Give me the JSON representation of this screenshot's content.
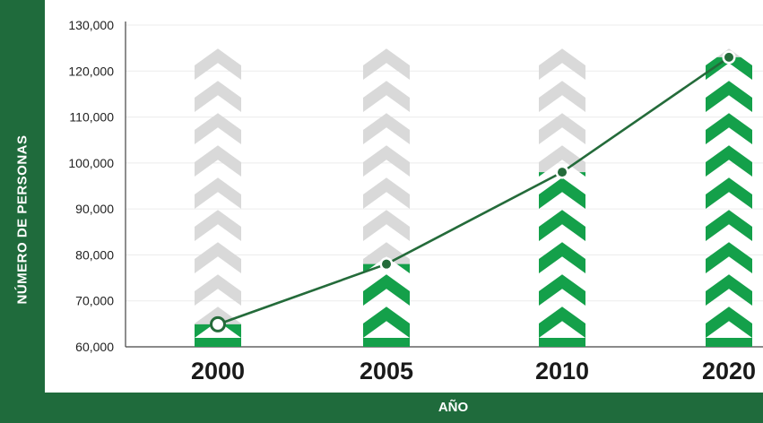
{
  "chart_data": {
    "type": "bar",
    "categories": [
      "2000",
      "2005",
      "2010",
      "2020"
    ],
    "values": [
      64900,
      78000,
      98000,
      123000
    ],
    "xlabel": "AÑO",
    "ylabel": "NÚMERO DE PERSONAS",
    "ylim": [
      60000,
      130000
    ],
    "yticks": [
      "60,000",
      "70,000",
      "80,000",
      "90,000",
      "100,000",
      "110,000",
      "120,000",
      "130,000"
    ],
    "grid": true,
    "legend": "none",
    "colors": {
      "frame": "#1f6b3c",
      "fill": "#14a04a",
      "empty": "#d9d9d9",
      "line": "#246b3a"
    }
  }
}
